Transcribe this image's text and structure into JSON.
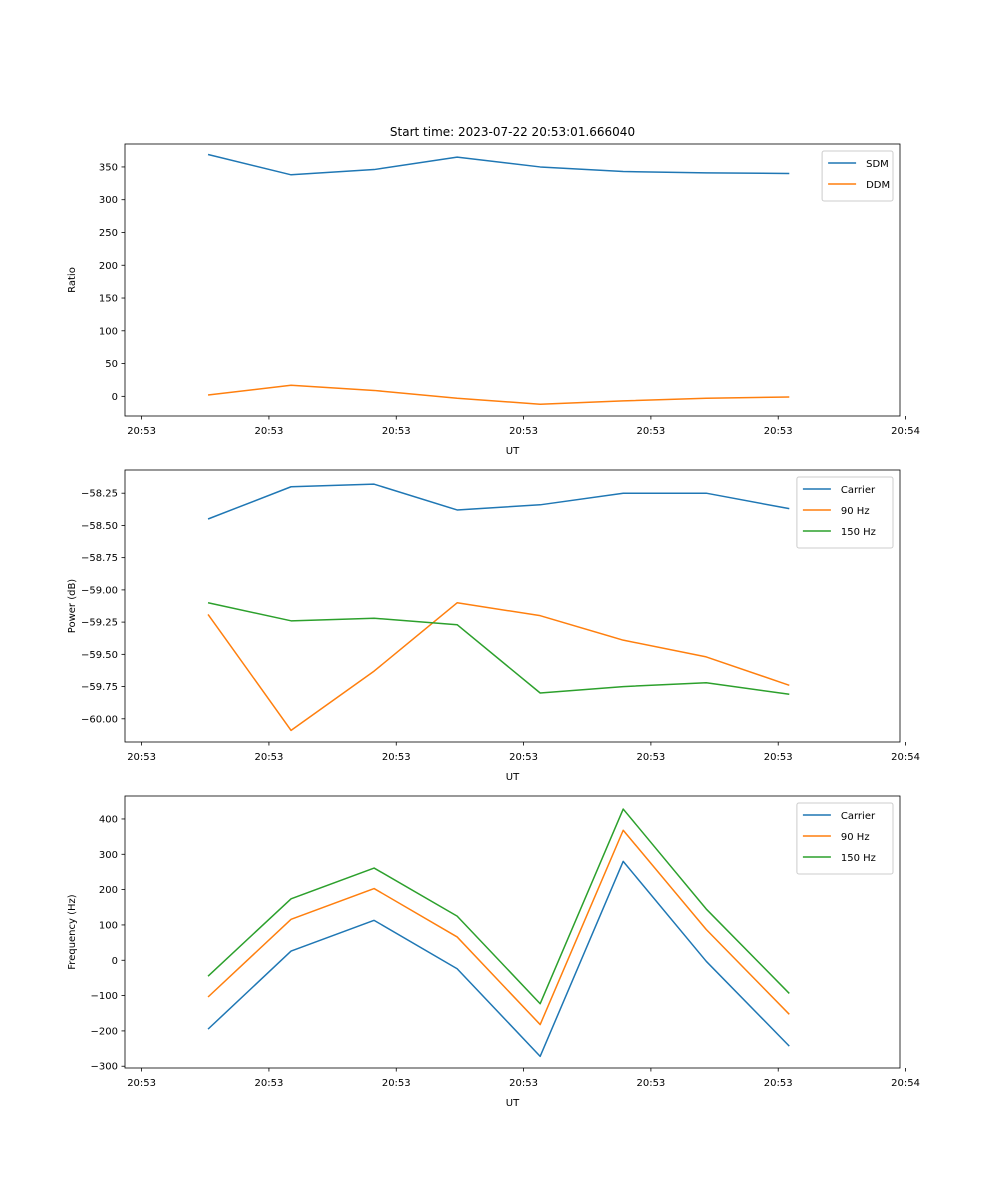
{
  "figure_title": "Start time: 2023-07-22 20:53:01.666040",
  "colors": {
    "blue": "#1f77b4",
    "orange": "#ff7f0e",
    "green": "#2ca02c"
  },
  "chart_data": [
    {
      "type": "line",
      "title": "Start time: 2023-07-22 20:53:01.666040",
      "xlabel": "UT",
      "ylabel": "Ratio",
      "xlim": [
        -1.5,
        12.5
      ],
      "ylim": [
        -30,
        385
      ],
      "x": [
        0,
        1.5,
        3,
        4.5,
        6,
        7.5,
        9,
        10.5
      ],
      "xticks": [
        -1.2,
        1.1,
        3.4,
        5.7,
        8.0,
        10.3,
        12.6
      ],
      "xtick_labels": [
        "20:53",
        "20:53",
        "20:53",
        "20:53",
        "20:53",
        "20:53",
        "20:54"
      ],
      "yticks": [
        0,
        50,
        100,
        150,
        200,
        250,
        300,
        350
      ],
      "ytick_labels": [
        "0",
        "50",
        "100",
        "150",
        "200",
        "250",
        "300",
        "350"
      ],
      "legend_position": "top-right",
      "series": [
        {
          "name": "SDM",
          "color": "#1f77b4",
          "values": [
            369,
            338,
            346,
            365,
            350,
            343,
            341,
            340
          ]
        },
        {
          "name": "DDM",
          "color": "#ff7f0e",
          "values": [
            2,
            17,
            9,
            -3,
            -12,
            -7,
            -3,
            -1
          ]
        }
      ]
    },
    {
      "type": "line",
      "title": "",
      "xlabel": "UT",
      "ylabel": "Power (dB)",
      "xlim": [
        -1.5,
        12.5
      ],
      "ylim": [
        -60.18,
        -58.07
      ],
      "x": [
        0,
        1.5,
        3,
        4.5,
        6,
        7.5,
        9,
        10.5
      ],
      "xticks": [
        -1.2,
        1.1,
        3.4,
        5.7,
        8.0,
        10.3,
        12.6
      ],
      "xtick_labels": [
        "20:53",
        "20:53",
        "20:53",
        "20:53",
        "20:53",
        "20:53",
        "20:54"
      ],
      "yticks": [
        -58.25,
        -58.5,
        -58.75,
        -59.0,
        -59.25,
        -59.5,
        -59.75,
        -60.0
      ],
      "ytick_labels": [
        "−58.25",
        "−58.50",
        "−58.75",
        "−59.00",
        "−59.25",
        "−59.50",
        "−59.75",
        "−60.00"
      ],
      "legend_position": "top-right",
      "series": [
        {
          "name": "Carrier",
          "color": "#1f77b4",
          "values": [
            -58.45,
            -58.2,
            -58.18,
            -58.38,
            -58.34,
            -58.25,
            -58.25,
            -58.37
          ]
        },
        {
          "name": "90 Hz",
          "color": "#ff7f0e",
          "values": [
            -59.19,
            -60.09,
            -59.63,
            -59.1,
            -59.2,
            -59.39,
            -59.52,
            -59.74
          ]
        },
        {
          "name": "150 Hz",
          "color": "#2ca02c",
          "values": [
            -59.1,
            -59.24,
            -59.22,
            -59.27,
            -59.8,
            -59.75,
            -59.72,
            -59.81
          ]
        }
      ]
    },
    {
      "type": "line",
      "title": "",
      "xlabel": "UT",
      "ylabel": "Frequency (Hz)",
      "xlim": [
        -1.5,
        12.5
      ],
      "ylim": [
        -305,
        465
      ],
      "x": [
        0,
        1.5,
        3,
        4.5,
        6,
        7.5,
        9,
        10.5
      ],
      "xticks": [
        -1.2,
        1.1,
        3.4,
        5.7,
        8.0,
        10.3,
        12.6
      ],
      "xtick_labels": [
        "20:53",
        "20:53",
        "20:53",
        "20:53",
        "20:53",
        "20:53",
        "20:54"
      ],
      "yticks": [
        -300,
        -200,
        -100,
        0,
        100,
        200,
        300,
        400
      ],
      "ytick_labels": [
        "−300",
        "−200",
        "−100",
        "0",
        "100",
        "200",
        "300",
        "400"
      ],
      "legend_position": "top-right",
      "series": [
        {
          "name": "Carrier",
          "color": "#1f77b4",
          "values": [
            -195,
            26,
            113,
            -24,
            -272,
            280,
            -3,
            -243
          ]
        },
        {
          "name": "90 Hz",
          "color": "#ff7f0e",
          "values": [
            -104,
            116,
            203,
            66,
            -182,
            368,
            87,
            -153
          ]
        },
        {
          "name": "150 Hz",
          "color": "#2ca02c",
          "values": [
            -45,
            174,
            261,
            125,
            -123,
            428,
            145,
            -94
          ]
        }
      ]
    }
  ]
}
